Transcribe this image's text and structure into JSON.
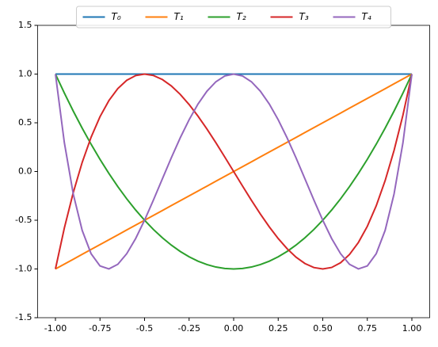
{
  "chart_data": {
    "type": "line",
    "x": [
      -1,
      -0.95,
      -0.9,
      -0.85,
      -0.8,
      -0.75,
      -0.7,
      -0.65,
      -0.6,
      -0.55,
      -0.5,
      -0.45,
      -0.4,
      -0.35,
      -0.3,
      -0.25,
      -0.2,
      -0.15,
      -0.1,
      -0.05,
      0,
      0.05,
      0.1,
      0.15,
      0.2,
      0.25,
      0.3,
      0.35,
      0.4,
      0.45,
      0.5,
      0.55,
      0.6,
      0.65,
      0.7,
      0.75,
      0.8,
      0.85,
      0.9,
      0.95,
      1
    ],
    "series": [
      {
        "name": "T₀",
        "color": "#1f77b4",
        "values": [
          1,
          1,
          1,
          1,
          1,
          1,
          1,
          1,
          1,
          1,
          1,
          1,
          1,
          1,
          1,
          1,
          1,
          1,
          1,
          1,
          1,
          1,
          1,
          1,
          1,
          1,
          1,
          1,
          1,
          1,
          1,
          1,
          1,
          1,
          1,
          1,
          1,
          1,
          1,
          1,
          1
        ]
      },
      {
        "name": "T₁",
        "color": "#ff7f0e",
        "values": [
          -1,
          -0.95,
          -0.9,
          -0.85,
          -0.8,
          -0.75,
          -0.7,
          -0.65,
          -0.6,
          -0.55,
          -0.5,
          -0.45,
          -0.4,
          -0.35,
          -0.3,
          -0.25,
          -0.2,
          -0.15,
          -0.1,
          -0.05,
          0,
          0.05,
          0.1,
          0.15,
          0.2,
          0.25,
          0.3,
          0.35,
          0.4,
          0.45,
          0.5,
          0.55,
          0.6,
          0.65,
          0.7,
          0.75,
          0.8,
          0.85,
          0.9,
          0.95,
          1
        ]
      },
      {
        "name": "T₂",
        "color": "#2ca02c",
        "values": [
          1,
          0.805,
          0.62,
          0.445,
          0.28,
          0.125,
          -0.02,
          -0.155,
          -0.28,
          -0.395,
          -0.5,
          -0.595,
          -0.68,
          -0.755,
          -0.82,
          -0.875,
          -0.92,
          -0.955,
          -0.98,
          -0.995,
          -1,
          -0.995,
          -0.98,
          -0.955,
          -0.92,
          -0.875,
          -0.82,
          -0.755,
          -0.68,
          -0.595,
          -0.5,
          -0.395,
          -0.28,
          -0.155,
          -0.02,
          0.125,
          0.28,
          0.445,
          0.62,
          0.805,
          1
        ]
      },
      {
        "name": "T₃",
        "color": "#d62728",
        "values": [
          -1,
          -0.5795,
          -0.216,
          0.0935,
          0.352,
          0.5625,
          0.728,
          0.8515,
          0.936,
          0.9845,
          1,
          0.9855,
          0.944,
          0.8785,
          0.792,
          0.6875,
          0.568,
          0.4365,
          0.296,
          0.1495,
          0,
          -0.1495,
          -0.296,
          -0.4365,
          -0.568,
          -0.6875,
          -0.792,
          -0.8785,
          -0.944,
          -0.9855,
          -1,
          -0.9845,
          -0.936,
          -0.8515,
          -0.728,
          -0.5625,
          -0.352,
          -0.0935,
          0.216,
          0.5795,
          1
        ]
      },
      {
        "name": "T₄",
        "color": "#9467bd",
        "values": [
          1,
          0.29605,
          -0.2312,
          -0.60395,
          -0.8432,
          -0.96875,
          -0.9992,
          -0.95195,
          -0.8432,
          -0.68795,
          -0.5,
          -0.29195,
          -0.0752,
          0.14005,
          0.3448,
          0.53125,
          0.6928,
          0.82405,
          0.9208,
          0.98005,
          1,
          0.98005,
          0.9208,
          0.82405,
          0.6928,
          0.53125,
          0.3448,
          0.14005,
          -0.0752,
          -0.29195,
          -0.5,
          -0.68795,
          -0.8432,
          -0.95195,
          -0.9992,
          -0.96875,
          -0.8432,
          -0.60395,
          -0.2312,
          0.29605,
          1
        ]
      }
    ],
    "xlim": [
      -1.1,
      1.1
    ],
    "xticks": [
      {
        "value": -1,
        "label": "-1.00"
      },
      -0.75,
      -0.5,
      -0.25,
      {
        "value": 0,
        "label": "0.00"
      },
      0.25,
      {
        "value": 0.5,
        "label": "0.50"
      },
      0.75,
      {
        "value": 1,
        "label": "1.00"
      }
    ],
    "ylim": [
      -1.5,
      1.5
    ],
    "yticks": [
      -1.5,
      {
        "value": -1,
        "label": "-1.0"
      },
      -0.5,
      {
        "value": 0,
        "label": "0.0"
      },
      0.5,
      {
        "value": 1,
        "label": "1.0"
      },
      1.5
    ],
    "legend": "upper center"
  }
}
